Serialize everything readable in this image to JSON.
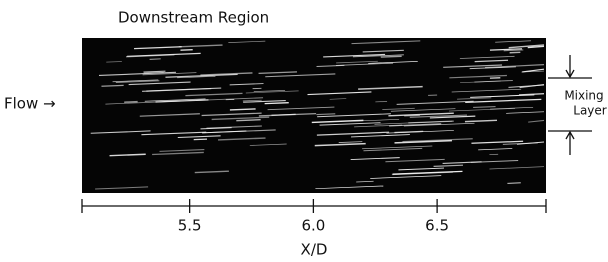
{
  "title": "Downstream Region",
  "flow_label": "Flow →",
  "annotation": [
    "Mixing",
    "Layer"
  ],
  "axis": {
    "label": "X/D",
    "xlim": [
      5.065,
      6.94
    ],
    "xticks": [
      {
        "value": 5.5,
        "label": "5.5"
      },
      {
        "value": 6.0,
        "label": "6.0"
      },
      {
        "value": 6.5,
        "label": "6.5"
      }
    ]
  }
}
